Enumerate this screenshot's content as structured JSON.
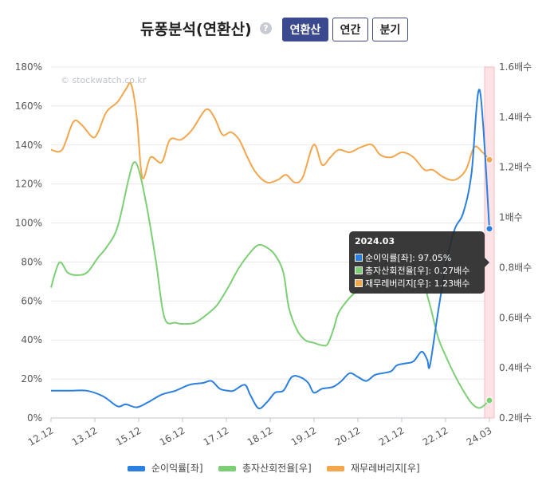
{
  "header": {
    "title": "듀퐁분석(연환산)",
    "help_icon": "?",
    "tabs": [
      {
        "label": "연환산",
        "active": true
      },
      {
        "label": "연간",
        "active": false
      },
      {
        "label": "분기",
        "active": false
      }
    ]
  },
  "watermark": "© stockwatch.co.kr",
  "tooltip": {
    "title": "2024.03",
    "rows": [
      {
        "text": "순이익률[좌]: 97.05%",
        "color": "#2b7fe0"
      },
      {
        "text": "총자산회전율[우]: 0.27배수",
        "color": "#7ccf74"
      },
      {
        "text": "재무레버리지[우]: 1.23배수",
        "color": "#f3a64b"
      }
    ]
  },
  "chart_data": {
    "type": "line",
    "x_tick_labels": [
      "12.12",
      "13.12",
      "15.12",
      "16.12",
      "17.12",
      "18.12",
      "19.12",
      "20.12",
      "21.12",
      "22.12",
      "24.03"
    ],
    "left_axis": {
      "ticks": [
        "0%",
        "20%",
        "40%",
        "60%",
        "80%",
        "100%",
        "120%",
        "140%",
        "160%",
        "180%"
      ],
      "ylim": [
        0,
        180
      ]
    },
    "right_axis": {
      "ticks": [
        "0.2배수",
        "0.4배수",
        "0.6배수",
        "0.8배수",
        "1배수",
        "1.2배수",
        "1.4배수",
        "1.6배수"
      ],
      "ylim": [
        0.2,
        1.6
      ]
    },
    "highlight": "2024.03",
    "series": [
      {
        "name": "순이익률[좌]",
        "axis": "left",
        "color": "#2b7fe0",
        "points": [
          [
            2012.0,
            14
          ],
          [
            2012.7,
            14
          ],
          [
            2013.3,
            14
          ],
          [
            2013.9,
            11
          ],
          [
            2014.4,
            6
          ],
          [
            2014.7,
            7
          ],
          [
            2015.1,
            5.5
          ],
          [
            2015.5,
            8
          ],
          [
            2016.0,
            12
          ],
          [
            2016.5,
            14
          ],
          [
            2017.0,
            17
          ],
          [
            2017.5,
            18
          ],
          [
            2017.8,
            19
          ],
          [
            2018.1,
            15
          ],
          [
            2018.4,
            14
          ],
          [
            2018.6,
            14
          ],
          [
            2019.0,
            17
          ],
          [
            2019.2,
            12
          ],
          [
            2019.5,
            5
          ],
          [
            2019.8,
            8
          ],
          [
            2020.1,
            13
          ],
          [
            2020.4,
            14
          ],
          [
            2020.7,
            21
          ],
          [
            2021.0,
            21
          ],
          [
            2021.3,
            18
          ],
          [
            2021.5,
            13
          ],
          [
            2021.8,
            15
          ],
          [
            2022.2,
            16
          ],
          [
            2022.5,
            19
          ],
          [
            2022.8,
            23
          ],
          [
            2023.1,
            21
          ],
          [
            2023.4,
            19
          ],
          [
            2023.7,
            22
          ],
          [
            2024.0,
            23
          ],
          [
            2024.3,
            24
          ],
          [
            2024.5,
            27
          ],
          [
            2024.8,
            28
          ],
          [
            2025.1,
            29
          ],
          [
            2025.4,
            34
          ],
          [
            2025.6,
            30
          ],
          [
            2025.7,
            27
          ],
          [
            2026.0,
            55
          ],
          [
            2026.3,
            80
          ],
          [
            2026.6,
            97
          ],
          [
            2026.9,
            105
          ],
          [
            2027.2,
            125
          ],
          [
            2027.5,
            168
          ],
          [
            2027.85,
            97.05
          ]
        ]
      },
      {
        "name": "총자산회전율[우]",
        "axis": "right",
        "color": "#7ccf74",
        "points": [
          [
            2012.0,
            0.72
          ],
          [
            2012.3,
            0.82
          ],
          [
            2012.6,
            0.78
          ],
          [
            2012.9,
            0.77
          ],
          [
            2013.3,
            0.78
          ],
          [
            2013.7,
            0.84
          ],
          [
            2014.0,
            0.88
          ],
          [
            2014.4,
            0.96
          ],
          [
            2014.8,
            1.15
          ],
          [
            2015.0,
            1.22
          ],
          [
            2015.2,
            1.18
          ],
          [
            2015.5,
            1.02
          ],
          [
            2015.8,
            0.82
          ],
          [
            2016.1,
            0.6
          ],
          [
            2016.5,
            0.58
          ],
          [
            2016.8,
            0.575
          ],
          [
            2017.2,
            0.58
          ],
          [
            2017.6,
            0.61
          ],
          [
            2018.0,
            0.65
          ],
          [
            2018.4,
            0.72
          ],
          [
            2018.8,
            0.8
          ],
          [
            2019.2,
            0.86
          ],
          [
            2019.5,
            0.89
          ],
          [
            2019.8,
            0.88
          ],
          [
            2020.1,
            0.85
          ],
          [
            2020.4,
            0.78
          ],
          [
            2020.6,
            0.64
          ],
          [
            2020.9,
            0.55
          ],
          [
            2021.2,
            0.51
          ],
          [
            2021.5,
            0.5
          ],
          [
            2021.8,
            0.49
          ],
          [
            2022.0,
            0.495
          ],
          [
            2022.2,
            0.55
          ],
          [
            2022.4,
            0.62
          ],
          [
            2022.8,
            0.68
          ],
          [
            2023.2,
            0.72
          ],
          [
            2023.6,
            0.76
          ],
          [
            2024.0,
            0.8
          ],
          [
            2024.3,
            0.84
          ],
          [
            2024.6,
            0.86
          ],
          [
            2025.0,
            0.83
          ],
          [
            2025.4,
            0.76
          ],
          [
            2025.7,
            0.65
          ],
          [
            2026.0,
            0.52
          ],
          [
            2026.3,
            0.44
          ],
          [
            2026.6,
            0.37
          ],
          [
            2026.9,
            0.31
          ],
          [
            2027.2,
            0.26
          ],
          [
            2027.5,
            0.24
          ],
          [
            2027.85,
            0.27
          ]
        ]
      },
      {
        "name": "재무레버리지[우]",
        "axis": "right",
        "color": "#f3a64b",
        "points": [
          [
            2012.0,
            1.27
          ],
          [
            2012.4,
            1.27
          ],
          [
            2012.8,
            1.38
          ],
          [
            2013.1,
            1.37
          ],
          [
            2013.5,
            1.32
          ],
          [
            2013.7,
            1.34
          ],
          [
            2014.0,
            1.42
          ],
          [
            2014.4,
            1.46
          ],
          [
            2014.7,
            1.51
          ],
          [
            2014.9,
            1.53
          ],
          [
            2015.1,
            1.4
          ],
          [
            2015.3,
            1.16
          ],
          [
            2015.6,
            1.24
          ],
          [
            2016.0,
            1.22
          ],
          [
            2016.3,
            1.31
          ],
          [
            2016.7,
            1.31
          ],
          [
            2017.1,
            1.35
          ],
          [
            2017.6,
            1.43
          ],
          [
            2017.9,
            1.4
          ],
          [
            2018.2,
            1.33
          ],
          [
            2018.5,
            1.34
          ],
          [
            2018.8,
            1.31
          ],
          [
            2019.1,
            1.24
          ],
          [
            2019.4,
            1.18
          ],
          [
            2019.8,
            1.14
          ],
          [
            2020.2,
            1.15
          ],
          [
            2020.5,
            1.17
          ],
          [
            2020.8,
            1.14
          ],
          [
            2021.1,
            1.16
          ],
          [
            2021.5,
            1.29
          ],
          [
            2021.8,
            1.21
          ],
          [
            2022.1,
            1.24
          ],
          [
            2022.4,
            1.27
          ],
          [
            2022.8,
            1.26
          ],
          [
            2023.2,
            1.28
          ],
          [
            2023.6,
            1.29
          ],
          [
            2023.9,
            1.25
          ],
          [
            2024.3,
            1.24
          ],
          [
            2024.7,
            1.26
          ],
          [
            2025.1,
            1.24
          ],
          [
            2025.5,
            1.19
          ],
          [
            2025.8,
            1.19
          ],
          [
            2026.2,
            1.16
          ],
          [
            2026.6,
            1.15
          ],
          [
            2027.0,
            1.19
          ],
          [
            2027.3,
            1.28
          ],
          [
            2027.6,
            1.26
          ],
          [
            2027.85,
            1.23
          ]
        ]
      }
    ]
  },
  "legend": [
    {
      "label": "순이익률[좌]",
      "color": "#2b7fe0"
    },
    {
      "label": "총자산회전율[우]",
      "color": "#7ccf74"
    },
    {
      "label": "재무레버리지[우]",
      "color": "#f3a64b"
    }
  ]
}
